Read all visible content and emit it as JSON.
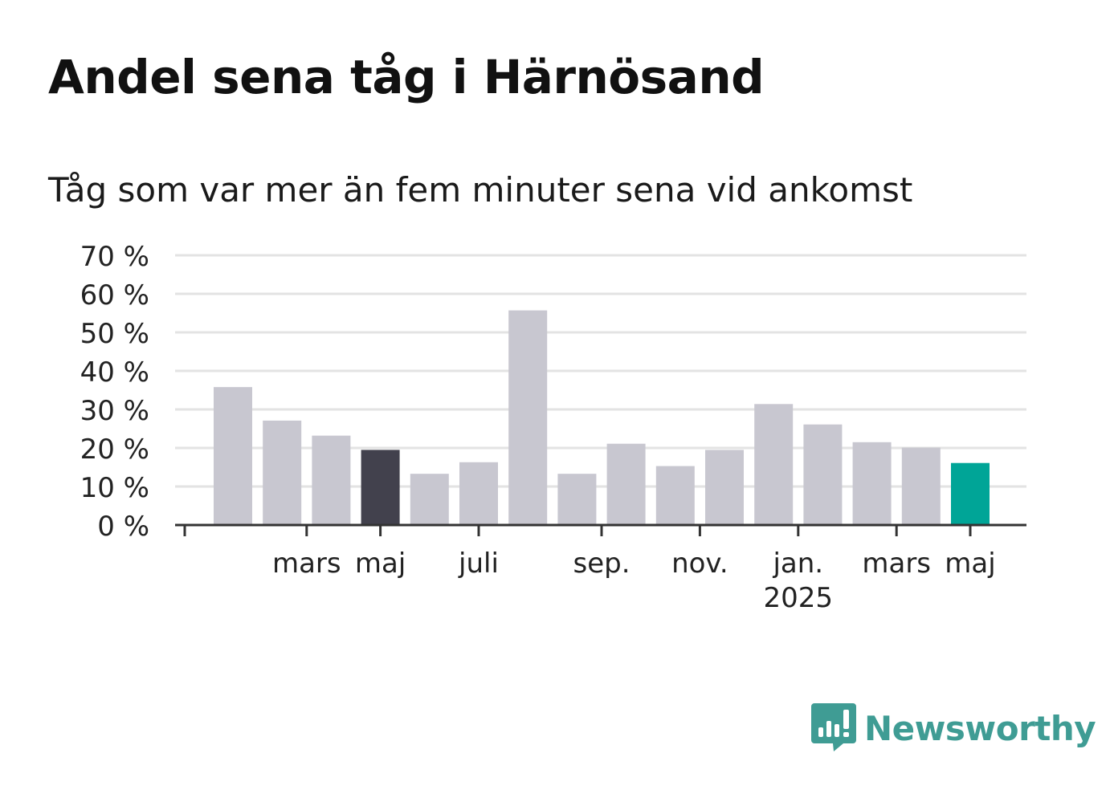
{
  "title": "Andel sena tåg i Härnösand",
  "subtitle": "Tåg som var mer än fem minuter sena vid ankomst",
  "brand": {
    "name": "Newsworthy",
    "icon": "bar-chart-speech-bubble-icon",
    "color": "#3f9c94"
  },
  "chart_data": {
    "type": "bar",
    "title": "Andel sena tåg i Härnösand",
    "subtitle": "Tåg som var mer än fem minuter sena vid ankomst",
    "ylim": [
      0,
      70
    ],
    "yticks": [
      0,
      10,
      20,
      30,
      40,
      50,
      60,
      70
    ],
    "ytick_labels": [
      "0 %",
      "10 %",
      "20 %",
      "30 %",
      "40 %",
      "50 %",
      "60 %",
      "70 %"
    ],
    "grid": true,
    "values": [
      35.8,
      27.1,
      23.2,
      19.5,
      13.3,
      16.3,
      55.7,
      13.3,
      21.1,
      15.3,
      19.5,
      31.4,
      26.1,
      21.5,
      20.1,
      16.1
    ],
    "bar_colors": [
      "#c8c7d0",
      "#c8c7d0",
      "#c8c7d0",
      "#42414d",
      "#c8c7d0",
      "#c8c7d0",
      "#c8c7d0",
      "#c8c7d0",
      "#c8c7d0",
      "#c8c7d0",
      "#c8c7d0",
      "#c8c7d0",
      "#c8c7d0",
      "#c8c7d0",
      "#c8c7d0",
      "#00a597"
    ],
    "xtick_labels": [
      {
        "bar": 1.5,
        "label": "mars"
      },
      {
        "bar": 3,
        "label": "maj"
      },
      {
        "bar": 5,
        "label": "juli"
      },
      {
        "bar": 7.5,
        "label": "sep."
      },
      {
        "bar": 9.5,
        "label": "nov."
      },
      {
        "bar": 11.5,
        "label": "jan.",
        "sublabel": "2025"
      },
      {
        "bar": 13.5,
        "label": "mars"
      },
      {
        "bar": 15,
        "label": "maj"
      }
    ],
    "colors": {
      "default": "#c8c7d0",
      "highlight_previous": "#42414d",
      "highlight_latest": "#00a597",
      "grid": "#e3e3e3",
      "axis": "#333333"
    }
  }
}
